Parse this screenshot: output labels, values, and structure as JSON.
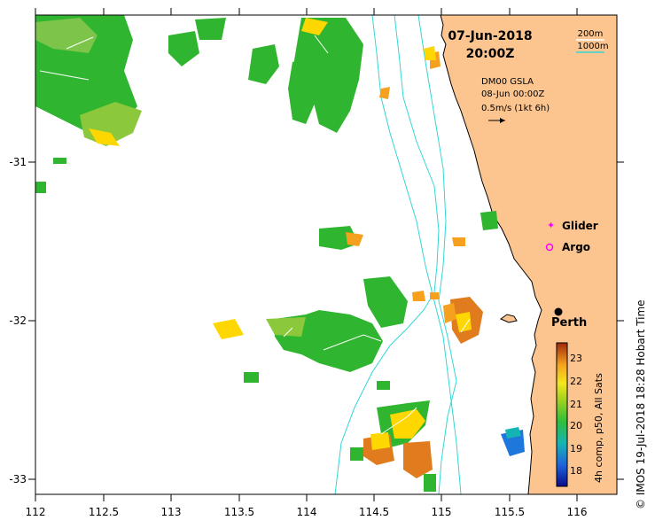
{
  "header": {
    "date": "07-Jun-2018",
    "time": "20:00Z"
  },
  "depth_legend": {
    "shallow": "200m",
    "deep": "1000m",
    "shallow_color": "#ffffff",
    "deep_color": "#33d6d6"
  },
  "current_info": {
    "line1": "DM00 GSLA",
    "line2": "08-Jun 00:00Z",
    "line3": "0.5m/s (1kt 6h)"
  },
  "markers": {
    "glider_label": "Glider",
    "glider_color": "#ff00ff",
    "argo_label": "Argo",
    "argo_color": "#ff00ff"
  },
  "city": {
    "name": "Perth"
  },
  "colorbar": {
    "label": "4h comp, p50, All Sats",
    "ticks": [
      "23",
      "22",
      "21",
      "20",
      "19",
      "18"
    ],
    "range": [
      17.5,
      23.5
    ]
  },
  "axes": {
    "x_ticks": [
      "112",
      "112.5",
      "113",
      "113.5",
      "114",
      "114.5",
      "115",
      "115.5",
      "116"
    ],
    "y_ticks": [
      "-31",
      "-32",
      "-33"
    ],
    "x_range": [
      112,
      116.3
    ],
    "y_range": [
      -33.1,
      -30.1
    ]
  },
  "credit": "© IMOS 19-Jul-2018 18:28 Hobart Time",
  "colors": {
    "land": "#fcc590",
    "ocean": "#ffffff",
    "sst_warm": "#d2691e",
    "sst_mid": "#ffd700",
    "sst_cool": "#2fb52f"
  }
}
